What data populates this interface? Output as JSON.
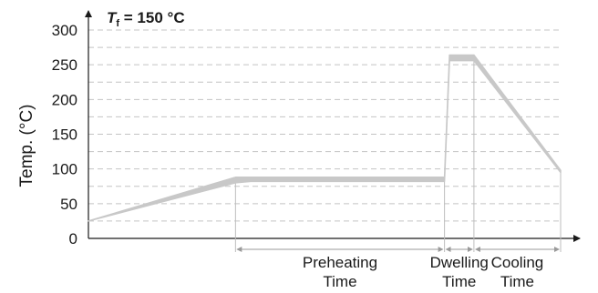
{
  "chart_data": {
    "type": "line",
    "title_var": "T",
    "title_sub": "f",
    "title_rest": " = 150 °C",
    "ylabel": "Temp. (°C)",
    "ylim": [
      0,
      300
    ],
    "yticks": [
      "0",
      "50",
      "100",
      "150",
      "200",
      "250",
      "300"
    ],
    "grid": "dashed horizontal every 25 °C",
    "band_color": "#c8c8c8",
    "profile": [
      {
        "x": 0,
        "y_low": 25,
        "y_high": 25
      },
      {
        "x": 38,
        "y_low": 80,
        "y_high": 88
      },
      {
        "x": 42,
        "y_low": 82,
        "y_high": 88
      },
      {
        "x": 92,
        "y_low": 82,
        "y_high": 88
      },
      {
        "x": 93.3,
        "y_low": 256,
        "y_high": 264
      },
      {
        "x": 99.6,
        "y_low": 256,
        "y_high": 264
      },
      {
        "x": 122,
        "y_low": 95,
        "y_high": 98
      }
    ],
    "phases": [
      {
        "id": "preheating",
        "line1": "Preheating",
        "line2": "Time",
        "from": 38,
        "to": 92
      },
      {
        "id": "dwelling",
        "line1": "Dwelling",
        "line2": "Time",
        "from": 92,
        "to": 99.6
      },
      {
        "id": "cooling",
        "line1": "Cooling",
        "line2": "Time",
        "from": 99.6,
        "to": 122
      }
    ]
  }
}
